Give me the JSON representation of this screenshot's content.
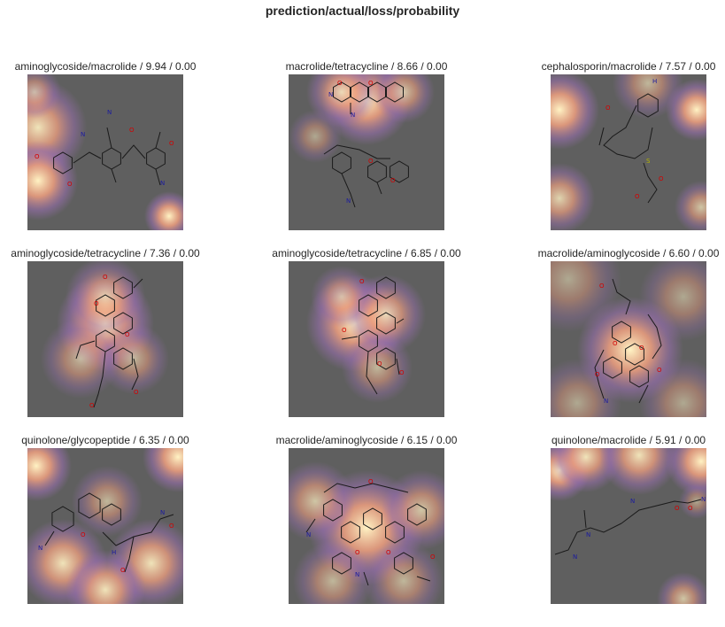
{
  "figure": {
    "suptitle": "prediction/actual/loss/probability",
    "panels": [
      {
        "prediction": "aminoglycoside",
        "actual": "macrolide",
        "loss": "9.94",
        "probability": "0.00",
        "title": "aminoglycoside/macrolide / 9.94 / 0.00"
      },
      {
        "prediction": "macrolide",
        "actual": "tetracycline",
        "loss": "8.66",
        "probability": "0.00",
        "title": "macrolide/tetracycline / 8.66 / 0.00"
      },
      {
        "prediction": "cephalosporin",
        "actual": "macrolide",
        "loss": "7.57",
        "probability": "0.00",
        "title": "cephalosporin/macrolide / 7.57 / 0.00"
      },
      {
        "prediction": "aminoglycoside",
        "actual": "tetracycline",
        "loss": "7.36",
        "probability": "0.00",
        "title": "aminoglycoside/tetracycline / 7.36 / 0.00"
      },
      {
        "prediction": "aminoglycoside",
        "actual": "tetracycline",
        "loss": "6.85",
        "probability": "0.00",
        "title": "aminoglycoside/tetracycline / 6.85 / 0.00"
      },
      {
        "prediction": "macrolide",
        "actual": "aminoglycoside",
        "loss": "6.60",
        "probability": "0.00",
        "title": "macrolide/aminoglycoside / 6.60 / 0.00"
      },
      {
        "prediction": "quinolone",
        "actual": "glycopeptide",
        "loss": "6.35",
        "probability": "0.00",
        "title": "quinolone/glycopeptide / 6.35 / 0.00"
      },
      {
        "prediction": "macrolide",
        "actual": "aminoglycoside",
        "loss": "6.15",
        "probability": "0.00",
        "title": "macrolide/aminoglycoside / 6.15 / 0.00"
      },
      {
        "prediction": "quinolone",
        "actual": "macrolide",
        "loss": "5.91",
        "probability": "0.00",
        "title": "quinolone/macrolide / 5.91 / 0.00"
      }
    ]
  },
  "colors": {
    "background": "#5f5f5f",
    "heat_hot": "#fff3c4",
    "heat_mid": "#f0a080",
    "heat_cool": "#9a6fb0",
    "atom_oxygen": "#d40000",
    "atom_nitrogen": "#1a1aa0",
    "atom_sulfur": "#b5b500",
    "bond": "#1a1a1a"
  }
}
